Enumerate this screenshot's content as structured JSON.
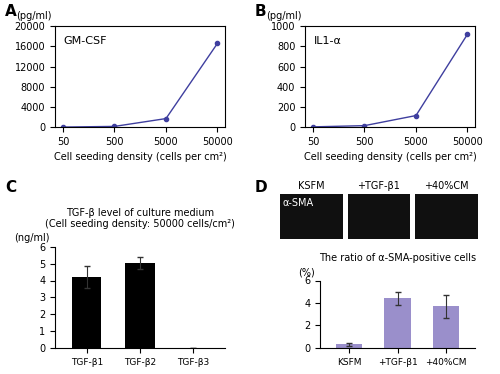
{
  "chart_data": [
    {
      "panel": "A",
      "type": "line",
      "annotation": "GM-CSF",
      "y_unit": "(pg/ml)",
      "x_label": "Cell seeding density (cells per cm²)",
      "x": [
        50,
        500,
        5000,
        50000
      ],
      "values": [
        20,
        150,
        1700,
        16600
      ],
      "color": "#3f3f9f",
      "marker": "o",
      "log": "x",
      "xlim": [
        35,
        70000
      ],
      "xticks": [
        50,
        500,
        5000,
        50000
      ],
      "ylim": [
        0,
        20000
      ],
      "yticks": [
        0,
        4000,
        8000,
        12000,
        16000,
        20000
      ]
    },
    {
      "panel": "B",
      "type": "line",
      "annotation": "IL1-α",
      "y_unit": "(pg/ml)",
      "x_label": "Cell seeding density (cells per cm²)",
      "x": [
        50,
        500,
        5000,
        50000
      ],
      "values": [
        3,
        15,
        115,
        920
      ],
      "color": "#3f3f9f",
      "marker": "o",
      "log": "x",
      "xlim": [
        35,
        70000
      ],
      "xticks": [
        50,
        500,
        5000,
        50000
      ],
      "ylim": [
        0,
        1000
      ],
      "yticks": [
        0,
        200,
        400,
        600,
        800,
        1000
      ]
    },
    {
      "panel": "C",
      "type": "bar",
      "title": "TGF-β level of culture medium",
      "subtitle": "(Cell seeding density: 50000 cells/cm²)",
      "y_unit": "(ng/ml)",
      "categories": [
        "TGF-β1",
        "TGF-β2",
        "TGF-β3"
      ],
      "values": [
        4.2,
        5.05,
        0
      ],
      "errors": [
        0.65,
        0.35,
        0
      ],
      "color": "#000000",
      "ylim": [
        0,
        6
      ],
      "yticks": [
        0,
        1,
        2,
        3,
        4,
        5,
        6
      ]
    },
    {
      "panel": "D",
      "type": "bar",
      "image_label": "α-SMA",
      "title": "The ratio of α-SMA-positive cells",
      "y_unit": "(%)",
      "categories": [
        "KSFM",
        "+TGF-β1",
        "+40%CM"
      ],
      "values": [
        0.3,
        4.4,
        3.7
      ],
      "errors": [
        0.15,
        0.6,
        1.0
      ],
      "color": "#9a8fcb",
      "ylim": [
        0,
        6
      ],
      "yticks": [
        0,
        2,
        4,
        6
      ]
    }
  ]
}
